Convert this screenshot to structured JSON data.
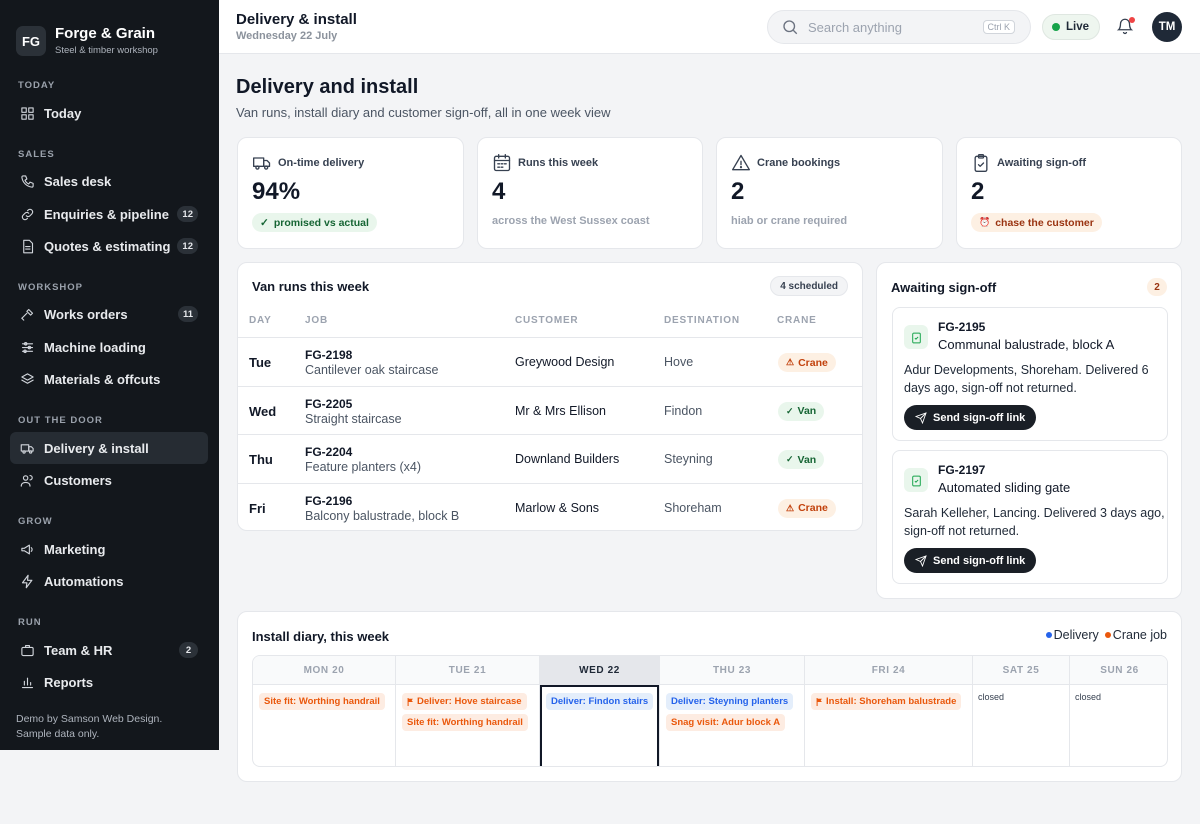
{
  "brand": {
    "logo": "FG",
    "name": "Forge & Grain",
    "subtitle": "Steel & timber workshop"
  },
  "sidebar": {
    "sections": [
      {
        "title": "TODAY",
        "items": [
          {
            "label": "Today",
            "icon": "grid-icon",
            "badge": null
          }
        ]
      },
      {
        "title": "SALES",
        "items": [
          {
            "label": "Sales desk",
            "icon": "phone-icon",
            "badge": null
          },
          {
            "label": "Enquiries & pipeline",
            "icon": "link-icon",
            "badge": "12"
          },
          {
            "label": "Quotes & estimating",
            "icon": "document-icon",
            "badge": "12"
          }
        ]
      },
      {
        "title": "WORKSHOP",
        "items": [
          {
            "label": "Works orders",
            "icon": "hammer-icon",
            "badge": "11"
          },
          {
            "label": "Machine loading",
            "icon": "sliders-icon",
            "badge": null
          },
          {
            "label": "Materials & offcuts",
            "icon": "layers-icon",
            "badge": null
          }
        ]
      },
      {
        "title": "OUT THE DOOR",
        "items": [
          {
            "label": "Delivery & install",
            "icon": "truck-icon",
            "badge": null,
            "active": true
          },
          {
            "label": "Customers",
            "icon": "users-icon",
            "badge": null
          }
        ]
      },
      {
        "title": "GROW",
        "items": [
          {
            "label": "Marketing",
            "icon": "megaphone-icon",
            "badge": null
          },
          {
            "label": "Automations",
            "icon": "bolt-icon",
            "badge": null
          }
        ]
      },
      {
        "title": "RUN",
        "items": [
          {
            "label": "Team & HR",
            "icon": "briefcase-icon",
            "badge": "2"
          },
          {
            "label": "Reports",
            "icon": "bar-chart-icon",
            "badge": null
          }
        ]
      }
    ],
    "footer_line1": "Demo by Samson Web Design.",
    "footer_line2": "Sample data only."
  },
  "topbar": {
    "title": "Delivery & install",
    "date": "Wednesday 22 July",
    "search_placeholder": "Search anything",
    "search_shortcut": "Ctrl K",
    "live_label": "Live",
    "avatar_initials": "TM"
  },
  "page": {
    "title": "Delivery and install",
    "subtitle": "Van runs, install diary and customer sign-off, all in one week view"
  },
  "stats": [
    {
      "label": "On-time delivery",
      "icon": "truck-icon",
      "value": "94%",
      "pill": "promised vs actual",
      "pill_color": "green"
    },
    {
      "label": "Runs this week",
      "icon": "calendar-icon",
      "value": "4",
      "note": "across the West Sussex coast"
    },
    {
      "label": "Crane bookings",
      "icon": "warning-icon",
      "value": "2",
      "note": "hiab or crane required"
    },
    {
      "label": "Awaiting sign-off",
      "icon": "clipboard-icon",
      "value": "2",
      "pill": "chase the customer",
      "pill_color": "orange"
    }
  ],
  "van_runs": {
    "title": "Van runs this week",
    "chip": "4 scheduled",
    "headers": [
      "DAY",
      "JOB",
      "CUSTOMER",
      "DESTINATION",
      "CRANE"
    ],
    "rows": [
      {
        "day": "Tue",
        "job_id": "FG-2198",
        "job_desc": "Cantilever oak staircase",
        "customer": "Greywood Design",
        "destination": "Hove",
        "crane": "Crane",
        "crane_type": "orange"
      },
      {
        "day": "Wed",
        "job_id": "FG-2205",
        "job_desc": "Straight staircase",
        "customer": "Mr & Mrs Ellison",
        "destination": "Findon",
        "crane": "Van",
        "crane_type": "green"
      },
      {
        "day": "Thu",
        "job_id": "FG-2204",
        "job_desc": "Feature planters (x4)",
        "customer": "Downland Builders",
        "destination": "Steyning",
        "crane": "Van",
        "crane_type": "green"
      },
      {
        "day": "Fri",
        "job_id": "FG-2196",
        "job_desc": "Balcony balustrade, block B",
        "customer": "Marlow & Sons",
        "destination": "Shoreham",
        "crane": "Crane",
        "crane_type": "orange"
      }
    ]
  },
  "signoff": {
    "title": "Awaiting sign-off",
    "count": "2",
    "items": [
      {
        "id": "FG-2195",
        "title": "Communal balustrade, block A",
        "desc": "Adur Developments, Shoreham. Delivered 6 days ago, sign-off not returned.",
        "button": "Send sign-off link"
      },
      {
        "id": "FG-2197",
        "title": "Automated sliding gate",
        "desc": "Sarah Kelleher, Lancing. Delivered 3 days ago, sign-off not returned.",
        "button": "Send sign-off link"
      }
    ]
  },
  "diary": {
    "title": "Install diary, this week",
    "legend": [
      {
        "label": "Delivery",
        "color": "#2563eb"
      },
      {
        "label": "Crane job",
        "color": "#ea580c"
      }
    ],
    "days": [
      {
        "label": "MON 20",
        "events": [
          {
            "text": "Site fit: Worthing handrail",
            "type": "orange",
            "flag": false
          }
        ]
      },
      {
        "label": "TUE 21",
        "events": [
          {
            "text": "Deliver: Hove staircase",
            "type": "orange",
            "flag": true
          },
          {
            "text": "Site fit: Worthing handrail",
            "type": "orange",
            "flag": false
          }
        ]
      },
      {
        "label": "WED 22",
        "today": true,
        "events": [
          {
            "text": "Deliver: Findon stairs",
            "type": "blue",
            "flag": false
          }
        ]
      },
      {
        "label": "THU 23",
        "events": [
          {
            "text": "Deliver: Steyning planters",
            "type": "blue",
            "flag": false
          },
          {
            "text": "Snag visit: Adur block A",
            "type": "orange",
            "flag": false
          }
        ]
      },
      {
        "label": "FRI 24",
        "events": [
          {
            "text": "Install: Shoreham balustrade",
            "type": "orange",
            "flag": true
          }
        ]
      },
      {
        "label": "SAT 25",
        "closed": "closed"
      },
      {
        "label": "SUN 26",
        "closed": "closed"
      }
    ]
  }
}
